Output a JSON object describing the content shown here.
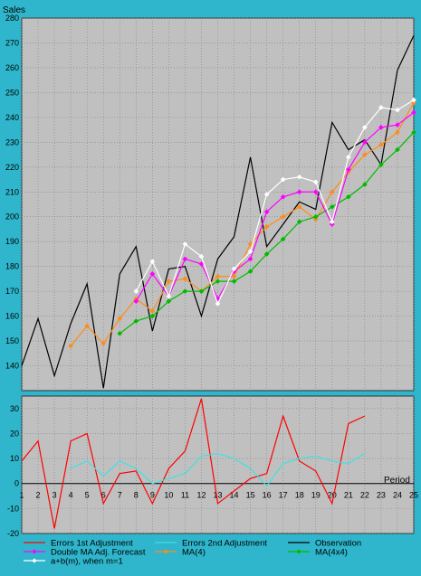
{
  "colors": {
    "frame": "#2fb6cc",
    "plot_bg": "#c0c0c0",
    "grid": "#808080",
    "observation": "#000000",
    "double_ma": "#ff00ff",
    "ma4": "#ff8c1a",
    "ma4x4": "#00bb00",
    "a_plus_b": "#ffffff",
    "err1": "#ff0000",
    "err2": "#40e0e0"
  },
  "chart_data": [
    {
      "type": "line",
      "title": "",
      "ylabel": "Sales",
      "xlabel": "",
      "ylim": [
        130,
        280
      ],
      "yticks": [
        140,
        150,
        160,
        170,
        180,
        190,
        200,
        210,
        220,
        230,
        240,
        250,
        260,
        270,
        280
      ],
      "x": [
        1,
        2,
        3,
        4,
        5,
        6,
        7,
        8,
        9,
        10,
        11,
        12,
        13,
        14,
        15,
        16,
        17,
        18,
        19,
        20,
        21,
        22,
        23,
        24,
        25
      ],
      "grid": true,
      "series": [
        {
          "name": "Observation",
          "color_key": "observation",
          "marker": "none",
          "x": [
            1,
            2,
            3,
            4,
            5,
            6,
            7,
            8,
            9,
            10,
            11,
            12,
            13,
            14,
            15,
            16,
            17,
            18,
            19,
            20,
            21,
            22,
            23,
            24,
            25
          ],
          "values": [
            140,
            159,
            136,
            157,
            173,
            131,
            177,
            188,
            154,
            179,
            180,
            160,
            183,
            192,
            224,
            188,
            197,
            206,
            203,
            238,
            227,
            231,
            221,
            259,
            273
          ]
        },
        {
          "name": "MA(4)",
          "color_key": "ma4",
          "marker": "diamond",
          "x": [
            4,
            5,
            6,
            7,
            8,
            9,
            10,
            11,
            12,
            13,
            14,
            15,
            16,
            17,
            18,
            19,
            20,
            21,
            22,
            23,
            24,
            25
          ],
          "values": [
            148,
            156,
            149,
            159,
            167,
            162,
            174,
            175,
            170,
            176,
            176,
            189,
            196,
            200,
            204,
            199,
            210,
            218,
            225,
            229,
            234,
            246
          ]
        },
        {
          "name": "MA(4x4)",
          "color_key": "ma4x4",
          "marker": "diamond",
          "x": [
            7,
            8,
            9,
            10,
            11,
            12,
            13,
            14,
            15,
            16,
            17,
            18,
            19,
            20,
            21,
            22,
            23,
            24,
            25
          ],
          "values": [
            153,
            158,
            160,
            166,
            170,
            170,
            174,
            174,
            178,
            185,
            191,
            198,
            200,
            204,
            208,
            213,
            221,
            227,
            234
          ]
        },
        {
          "name": "Double MA Adj. Forecast",
          "color_key": "double_ma",
          "marker": "diamond",
          "x": [
            8,
            9,
            10,
            11,
            12,
            13,
            14,
            15,
            16,
            17,
            18,
            19,
            20,
            21,
            22,
            23,
            24,
            25
          ],
          "values": [
            166,
            177,
            168,
            183,
            181,
            167,
            178,
            183,
            202,
            208,
            210,
            210,
            197,
            219,
            230,
            236,
            237,
            242
          ]
        },
        {
          "name": "a+b(m), when m=1",
          "color_key": "a_plus_b",
          "marker": "diamond",
          "x": [
            8,
            9,
            10,
            11,
            12,
            13,
            14,
            15,
            16,
            17,
            18,
            19,
            20,
            21,
            22,
            23,
            24,
            25
          ],
          "values": [
            170,
            182,
            168,
            189,
            184,
            165,
            179,
            186,
            209,
            215,
            216,
            214,
            198,
            224,
            236,
            244,
            243,
            247
          ]
        }
      ]
    },
    {
      "type": "line",
      "title": "",
      "xlabel": "Period",
      "ylabel": "",
      "ylim": [
        -20,
        35
      ],
      "yticks": [
        -20,
        -10,
        0,
        10,
        20,
        30
      ],
      "x": [
        1,
        2,
        3,
        4,
        5,
        6,
        7,
        8,
        9,
        10,
        11,
        12,
        13,
        14,
        15,
        16,
        17,
        18,
        19,
        20,
        21,
        22,
        23,
        24,
        25
      ],
      "grid": true,
      "series": [
        {
          "name": "Errors 1st Adjustment",
          "color_key": "err1",
          "marker": "none",
          "x": [
            1,
            2,
            3,
            4,
            5,
            6,
            7,
            8,
            9,
            10,
            11,
            12,
            13,
            14,
            15,
            16,
            17,
            18,
            19,
            20,
            21,
            22
          ],
          "values": [
            9,
            17,
            -18,
            17,
            20,
            -8,
            4,
            5,
            -8,
            6,
            13,
            34,
            -8,
            -3,
            2,
            4,
            27,
            9,
            5,
            -8,
            24,
            27
          ]
        },
        {
          "name": "Errors 2nd Adjustment",
          "color_key": "err2",
          "marker": "none",
          "x": [
            4,
            5,
            6,
            7,
            8,
            9,
            10,
            11,
            12,
            13,
            14,
            15,
            16,
            17,
            18,
            19,
            20,
            21,
            22
          ],
          "values": [
            6,
            9,
            3,
            9,
            6,
            0,
            2,
            4,
            11,
            12,
            10,
            6,
            -1,
            8,
            10,
            11,
            9,
            8,
            12
          ]
        }
      ]
    }
  ],
  "legend": {
    "items": [
      {
        "label": "Errors 1st Adjustment",
        "color_key": "err1",
        "marker": "none"
      },
      {
        "label": "Errors 2nd Adjustment",
        "color_key": "err2",
        "marker": "none"
      },
      {
        "label": "Observation",
        "color_key": "observation",
        "marker": "none"
      },
      {
        "label": "Double MA Adj. Forecast",
        "color_key": "double_ma",
        "marker": "diamond"
      },
      {
        "label": "MA(4)",
        "color_key": "ma4",
        "marker": "diamond"
      },
      {
        "label": "MA(4x4)",
        "color_key": "ma4x4",
        "marker": "diamond"
      },
      {
        "label": "a+b(m), when m=1",
        "color_key": "a_plus_b",
        "marker": "diamond"
      }
    ]
  }
}
